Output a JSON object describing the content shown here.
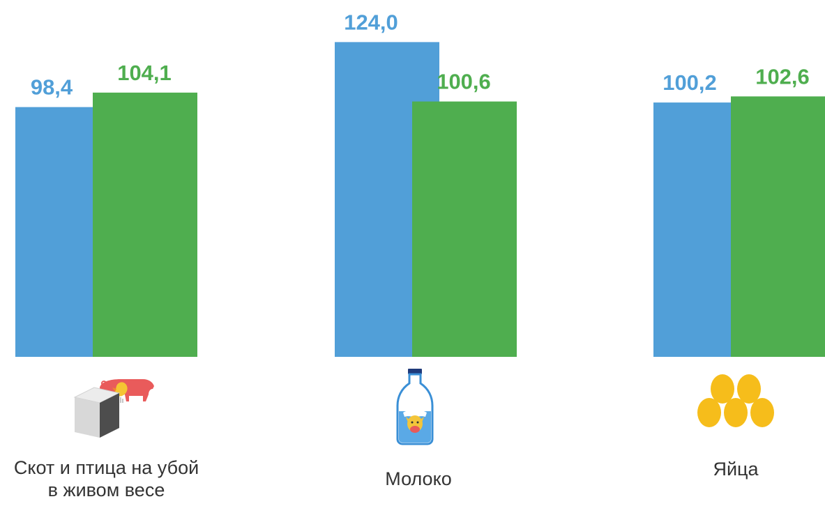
{
  "chart_data": {
    "type": "bar",
    "categories": [
      "Скот и птица на убой в живом весе",
      "Молоко",
      "Яйца"
    ],
    "series": [
      {
        "values": [
          98.4,
          124.0,
          100.2
        ],
        "color": "#519fd8"
      },
      {
        "values": [
          104.1,
          100.6,
          102.6
        ],
        "color": "#4fae4f"
      }
    ],
    "value_labels": [
      [
        "98,4",
        "124,0",
        "100,2"
      ],
      [
        "104,1",
        "100,6",
        "102,6"
      ]
    ],
    "category_labels": [
      [
        "Скот и птица на убой",
        "в живом весе"
      ],
      [
        "Молоко"
      ],
      [
        "Яйца"
      ]
    ],
    "icons": [
      "livestock-poultry-icon",
      "milk-bottle-icon",
      "eggs-icon"
    ],
    "title": "",
    "xlabel": "",
    "ylabel": "",
    "legend": "none",
    "grid": false
  }
}
